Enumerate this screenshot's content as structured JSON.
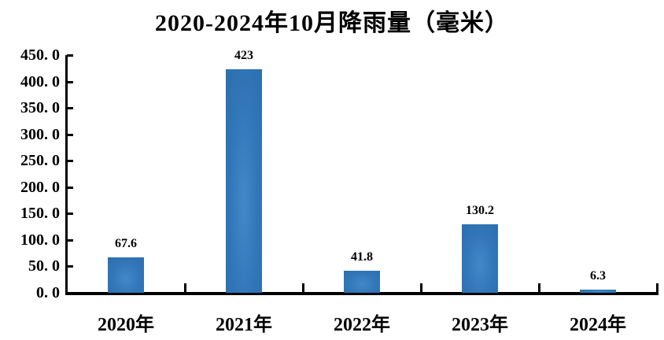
{
  "chart_data": {
    "type": "bar",
    "title": "2020-2024年10月降雨量（毫米）",
    "categories": [
      "2020年",
      "2021年",
      "2022年",
      "2023年",
      "2024年"
    ],
    "values": [
      67.6,
      423,
      41.8,
      130.2,
      6.3
    ],
    "value_labels": [
      "67.6",
      "423",
      "41.8",
      "130.2",
      "6.3"
    ],
    "y_tick_labels": [
      "0. 0",
      "50. 0",
      "100. 0",
      "150. 0",
      "200. 0",
      "250. 0",
      "300. 0",
      "350. 0",
      "400. 0",
      "450. 0"
    ],
    "ylim": [
      0,
      450
    ],
    "y_step": 50,
    "xlabel": "",
    "ylabel": "",
    "grid": false,
    "legend": "none",
    "bar_color": "#3176b8",
    "bar_color_light": "#4389c8",
    "axis_color": "#000000",
    "text_color": "#000000",
    "background_color": "#ffffff"
  }
}
